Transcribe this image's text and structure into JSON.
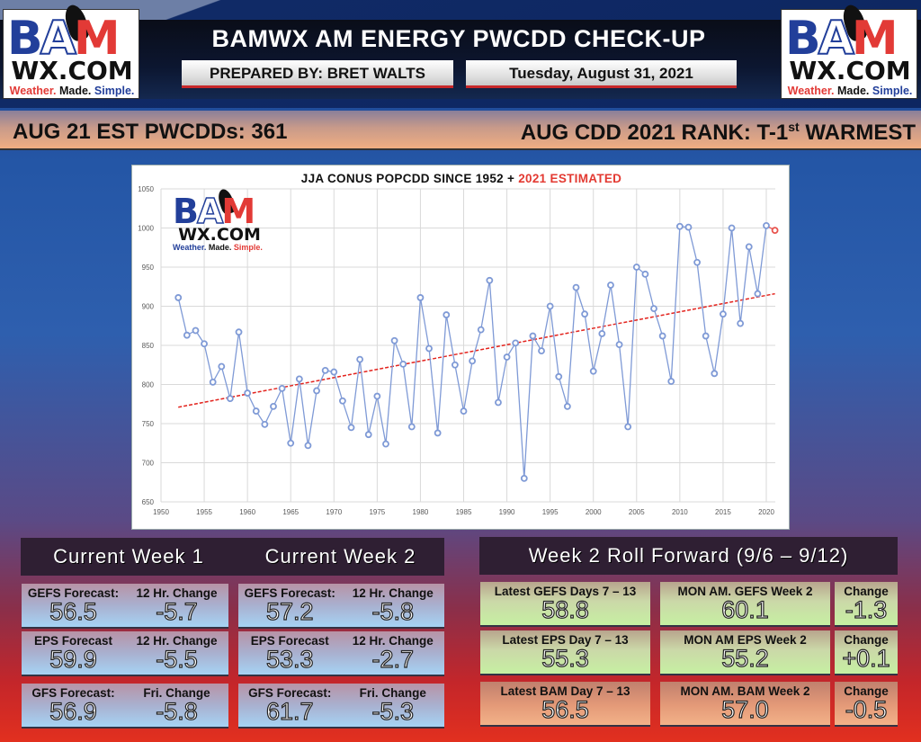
{
  "header": {
    "title": "BAMWX AM ENERGY PWCDD CHECK-UP",
    "prepared_by": "PREPARED BY: BRET WALTS",
    "date": "Tuesday, August 31, 2021",
    "logo": {
      "bam": [
        "B",
        "A",
        "M"
      ],
      "wx": "WX.COM",
      "tagline": [
        "Weather.",
        "Made.",
        "Simple."
      ]
    }
  },
  "stats": {
    "left": "AUG 21 EST PWCDDs: 361",
    "right_prefix": "AUG CDD 2021 RANK: T-1",
    "right_sup": "st",
    "right_suffix": " WARMEST"
  },
  "chart_data": {
    "type": "line",
    "title": "JJA CONUS POPCDD SINCE 1952 + ",
    "title_highlight": "2021 ESTIMATED",
    "xlabel": "",
    "ylabel": "",
    "xlim": [
      1950,
      2020
    ],
    "ylim": [
      650,
      1050
    ],
    "x_ticks": [
      1950,
      1955,
      1960,
      1965,
      1970,
      1975,
      1980,
      1985,
      1990,
      1995,
      2000,
      2005,
      2010,
      2015,
      2020
    ],
    "y_ticks": [
      650,
      700,
      750,
      800,
      850,
      900,
      950,
      1000,
      1050
    ],
    "grid": true,
    "legend": "none",
    "series": [
      {
        "name": "JJA CONUS POPCDD",
        "color": "#7f9ad6",
        "x": [
          1952,
          1953,
          1954,
          1955,
          1956,
          1957,
          1958,
          1959,
          1960,
          1961,
          1962,
          1963,
          1964,
          1965,
          1966,
          1967,
          1968,
          1969,
          1970,
          1971,
          1972,
          1973,
          1974,
          1975,
          1976,
          1977,
          1978,
          1979,
          1980,
          1981,
          1982,
          1983,
          1984,
          1985,
          1986,
          1987,
          1988,
          1989,
          1990,
          1991,
          1992,
          1993,
          1994,
          1995,
          1996,
          1997,
          1998,
          1999,
          2000,
          2001,
          2002,
          2003,
          2004,
          2005,
          2006,
          2007,
          2008,
          2009,
          2010,
          2011,
          2012,
          2013,
          2014,
          2015,
          2016,
          2017,
          2018,
          2019,
          2020
        ],
        "values": [
          911,
          863,
          869,
          852,
          803,
          823,
          782,
          867,
          789,
          766,
          749,
          772,
          795,
          725,
          807,
          722,
          792,
          818,
          816,
          779,
          745,
          832,
          736,
          785,
          724,
          856,
          826,
          746,
          911,
          846,
          738,
          889,
          825,
          766,
          830,
          870,
          933,
          777,
          835,
          853,
          680,
          862,
          843,
          900,
          810,
          772,
          924,
          890,
          817,
          865,
          927,
          851,
          746,
          950,
          941,
          897,
          862,
          804,
          1002,
          1001,
          956,
          862,
          814,
          890,
          1000,
          878,
          976,
          916,
          1003
        ]
      },
      {
        "name": "2021 Estimated",
        "color": "#e8534d",
        "x": [
          2020,
          2021
        ],
        "values": [
          1003,
          997
        ]
      },
      {
        "name": "Linear Trend",
        "color": "#e3241e",
        "style": "dashed",
        "x": [
          1952,
          2021
        ],
        "values": [
          771,
          916
        ]
      }
    ]
  },
  "week_panel": {
    "heading_1": "Current Week 1",
    "heading_2": "Current Week 2",
    "rows": [
      {
        "week1": {
          "label_a": "GEFS Forecast:",
          "label_b": "12 Hr. Change",
          "value": "56.5",
          "change": "-5.7"
        },
        "week2": {
          "label_a": "GEFS Forecast:",
          "label_b": "12 Hr. Change",
          "value": "57.2",
          "change": "-5.8"
        }
      },
      {
        "week1": {
          "label_a": "EPS Forecast",
          "label_b": "12 Hr. Change",
          "value": "59.9",
          "change": "-5.5"
        },
        "week2": {
          "label_a": "EPS Forecast",
          "label_b": "12 Hr. Change",
          "value": "53.3",
          "change": "-2.7"
        }
      },
      {
        "week1": {
          "label_a": "GFS Forecast:",
          "label_b": "Fri. Change",
          "value": "56.9",
          "change": "-5.8"
        },
        "week2": {
          "label_a": "GFS Forecast:",
          "label_b": "Fri. Change",
          "value": "61.7",
          "change": "-5.3"
        }
      }
    ]
  },
  "roll_panel": {
    "heading": "Week 2 Roll Forward (9/6 – 9/12)",
    "rows": [
      {
        "latest_label": "Latest GEFS Days 7 – 13",
        "latest_value": "58.8",
        "mon_label": "MON AM. GEFS Week 2",
        "mon_value": "60.1",
        "change_label": "Change",
        "change_value": "-1.3"
      },
      {
        "latest_label": "Latest EPS Day 7 – 13",
        "latest_value": "55.3",
        "mon_label": "MON AM EPS Week 2",
        "mon_value": "55.2",
        "change_label": "Change",
        "change_value": "+0.1"
      },
      {
        "latest_label": "Latest BAM Day 7 – 13",
        "latest_value": "56.5",
        "mon_label": "MON AM. BAM Week 2",
        "mon_value": "57.0",
        "change_label": "Change",
        "change_value": "-0.5"
      }
    ]
  }
}
